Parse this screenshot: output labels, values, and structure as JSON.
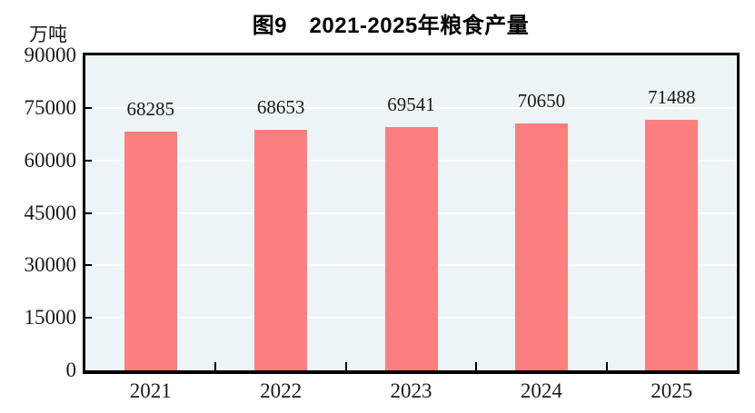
{
  "chart_data": {
    "type": "bar",
    "title": "图9　2021-2025年粮食产量",
    "unit_label": "万吨",
    "categories": [
      "2021",
      "2022",
      "2023",
      "2024",
      "2025"
    ],
    "values": [
      68285,
      68653,
      69541,
      70650,
      71488
    ],
    "data_labels": [
      68285,
      68653,
      69541,
      70650,
      71488
    ],
    "ylim": [
      0,
      90000
    ],
    "yticks": [
      0,
      15000,
      30000,
      45000,
      60000,
      75000,
      90000
    ],
    "xlabel": "",
    "ylabel": "万吨",
    "grid": "horizontal",
    "legend": "none",
    "colors": {
      "bar": "#FC7E7E",
      "plot_background": "#EDF4F8",
      "gridline": "#FFFFFF",
      "axis": "#000000",
      "text": "#1A1A1A"
    }
  }
}
